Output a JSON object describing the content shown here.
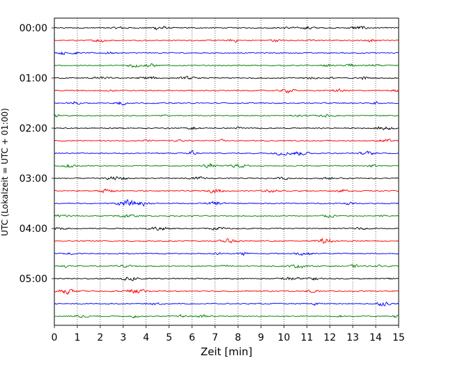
{
  "chart_data": {
    "type": "line",
    "subtype": "helicorder",
    "title": "",
    "xlabel": "Zeit  [min]",
    "ylabel": "UTC (Lokalzeit = UTC + 01:00)",
    "xlim": [
      0,
      15
    ],
    "x_ticks": [
      "0",
      "1",
      "2",
      "3",
      "4",
      "5",
      "6",
      "7",
      "8",
      "9",
      "10",
      "11",
      "12",
      "13",
      "14",
      "15"
    ],
    "y_tick_labels": [
      "00:00",
      "01:00",
      "02:00",
      "03:00",
      "04:00",
      "05:00"
    ],
    "trace_count": 24,
    "minutes_per_trace": 15,
    "trace_colors": [
      "#000000",
      "#ff0000",
      "#0000ff",
      "#008000"
    ],
    "grid": "vertical dotted lines at each minute",
    "legend": "none"
  }
}
